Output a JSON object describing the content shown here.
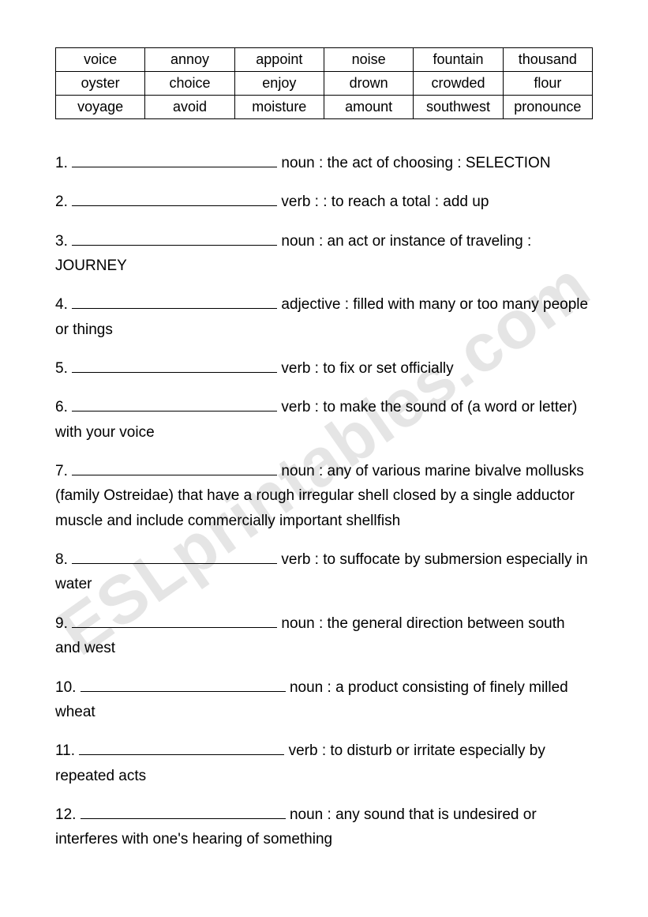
{
  "watermark": "ESLprintables.com",
  "table": {
    "rows": [
      [
        "voice",
        "annoy",
        "appoint",
        "noise",
        "fountain",
        "thousand"
      ],
      [
        "oyster",
        "choice",
        "enjoy",
        "drown",
        "crowded",
        "flour"
      ],
      [
        "voyage",
        "avoid",
        "moisture",
        "amount",
        "southwest",
        "pronounce"
      ]
    ]
  },
  "questions": [
    {
      "num": "1.",
      "def": "noun : the act of choosing : SELECTION"
    },
    {
      "num": "2.",
      "def": "verb : : to reach a total : add up"
    },
    {
      "num": "3.",
      "def": "noun : an act or instance of traveling : JOURNEY"
    },
    {
      "num": "4.",
      "def": "adjective : filled with many or too many people or things"
    },
    {
      "num": "5.",
      "def": "verb : to fix or set officially"
    },
    {
      "num": "6.",
      "def": "verb : to make the sound of (a word or letter) with your voice"
    },
    {
      "num": "7.",
      "def": "noun : any of various marine bivalve mollusks (family Ostreidae) that have a rough irregular shell closed by a single adductor muscle and include commercially important shellfish"
    },
    {
      "num": "8.",
      "def": "verb : to suffocate by submersion especially in water"
    },
    {
      "num": "9.",
      "def": "noun : the general direction between south and west"
    },
    {
      "num": "10.",
      "def": "noun : a product consisting of finely milled wheat"
    },
    {
      "num": "11.",
      "def": "verb : to disturb or irritate especially by repeated acts"
    },
    {
      "num": "12.",
      "def": "noun : any sound that is undesired or interferes with one's hearing of something"
    }
  ]
}
